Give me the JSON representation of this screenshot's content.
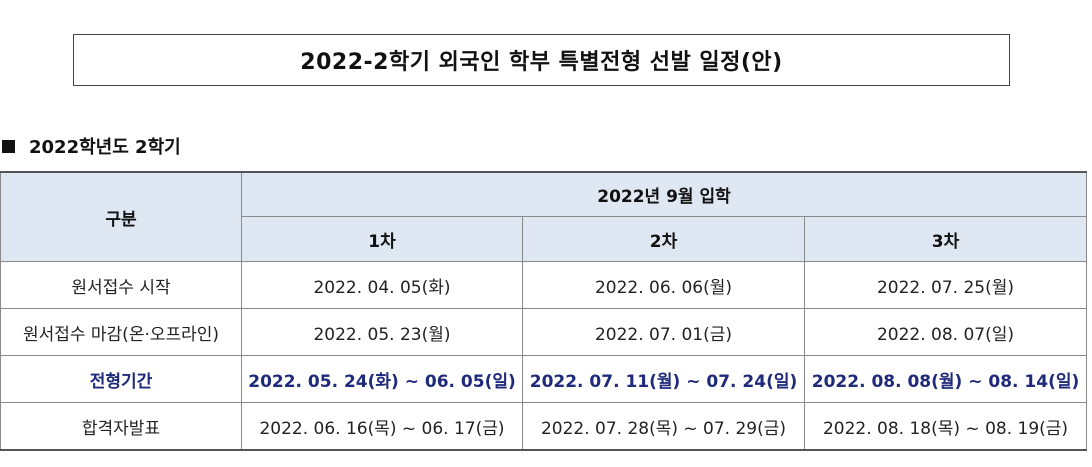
{
  "title": "2022-2학기 외국인 학부 특별전형 선발 일정(안)",
  "section_heading": "2022학년도 2학기",
  "table": {
    "corner_header": "구분",
    "group_header": "2022년 9월 입학",
    "rounds": [
      "1차",
      "2차",
      "3차"
    ],
    "rows": [
      {
        "label": "원서접수 시작",
        "values": [
          "2022. 04. 05(화)",
          "2022. 06. 06(월)",
          "2022. 07. 25(월)"
        ]
      },
      {
        "label": "원서접수 마감(온·오프라인)",
        "values": [
          "2022. 05. 23(월)",
          "2022. 07. 01(금)",
          "2022. 08. 07(일)"
        ]
      },
      {
        "label": "전형기간",
        "values": [
          "2022. 05. 24(화) ~ 06. 05(일)",
          "2022. 07. 11(월) ~ 07. 24(일)",
          "2022. 08. 08(월) ~ 08. 14(일)"
        ]
      },
      {
        "label": "합격자발표",
        "values": [
          "2022. 06. 16(목) ~ 06. 17(금)",
          "2022. 07. 28(목) ~ 07. 29(금)",
          "2022. 08. 18(목) ~ 08. 19(금)"
        ]
      }
    ]
  },
  "colors": {
    "header_bg": "#dfe7f2",
    "emphasis_text": "#1f2a7a"
  }
}
